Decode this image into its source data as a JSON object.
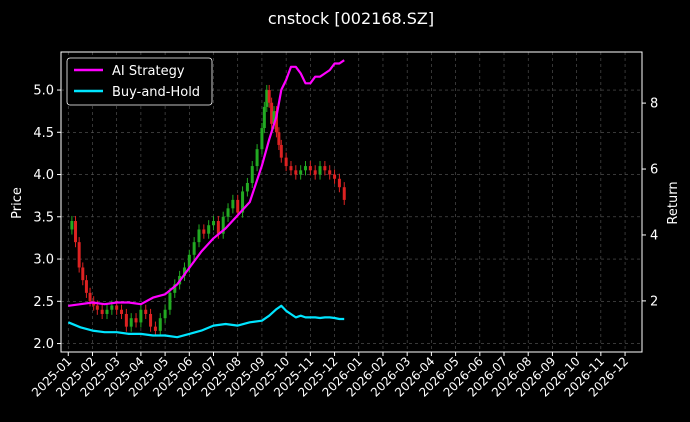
{
  "chart_data": {
    "type": "line",
    "title": "cnstock [002168.SZ]",
    "ylabel_left": "Price",
    "ylabel_right": "Return",
    "xlabel": "",
    "grid": true,
    "legend_position": "top-left",
    "x_ticks": [
      "2025-01",
      "2025-02",
      "2025-03",
      "2025-04",
      "2025-05",
      "2025-06",
      "2025-07",
      "2025-08",
      "2025-09",
      "2025-10",
      "2025-11",
      "2025-12",
      "2026-01",
      "2026-02",
      "2026-03",
      "2026-04",
      "2026-05",
      "2026-06",
      "2026-07",
      "2026-08",
      "2026-09",
      "2026-10",
      "2026-11",
      "2026-12"
    ],
    "y_left_ticks": [
      "2.0",
      "2.5",
      "3.0",
      "3.5",
      "4.0",
      "4.5",
      "5.0"
    ],
    "y_left_lim": [
      1.9,
      5.45
    ],
    "y_right_ticks": [
      "2",
      "4",
      "6",
      "8"
    ],
    "y_right_lim": [
      0.45,
      9.55
    ],
    "x_lim_month_index": [
      -0.3,
      23.7
    ],
    "price": {
      "up_color": "#22aa22",
      "down_color": "#dd2222",
      "x_month_index": [
        0.0,
        0.15,
        0.3,
        0.45,
        0.6,
        0.75,
        0.9,
        1.05,
        1.2,
        1.4,
        1.6,
        1.8,
        2.0,
        2.2,
        2.4,
        2.6,
        2.8,
        3.0,
        3.2,
        3.4,
        3.6,
        3.8,
        4.0,
        4.2,
        4.4,
        4.6,
        4.8,
        5.0,
        5.2,
        5.4,
        5.6,
        5.8,
        6.0,
        6.2,
        6.4,
        6.6,
        6.8,
        7.0,
        7.2,
        7.4,
        7.6,
        7.8,
        8.0,
        8.1,
        8.2,
        8.3,
        8.4,
        8.5,
        8.6,
        8.7,
        8.8,
        9.0,
        9.2,
        9.4,
        9.6,
        9.8,
        10.0,
        10.2,
        10.4,
        10.6,
        10.8,
        11.0,
        11.2,
        11.4
      ],
      "close": [
        3.35,
        3.45,
        3.2,
        2.9,
        2.75,
        2.6,
        2.5,
        2.45,
        2.4,
        2.35,
        2.4,
        2.45,
        2.4,
        2.35,
        2.2,
        2.3,
        2.25,
        2.4,
        2.35,
        2.2,
        2.15,
        2.3,
        2.4,
        2.6,
        2.7,
        2.8,
        2.9,
        3.05,
        3.2,
        3.35,
        3.3,
        3.4,
        3.45,
        3.3,
        3.5,
        3.6,
        3.7,
        3.55,
        3.8,
        3.9,
        4.1,
        4.3,
        4.55,
        4.8,
        5.0,
        4.85,
        4.6,
        4.75,
        4.5,
        4.35,
        4.2,
        4.1,
        4.05,
        4.0,
        4.05,
        4.1,
        4.05,
        4.0,
        4.1,
        4.05,
        4.0,
        3.95,
        3.85,
        3.7
      ]
    },
    "series": [
      {
        "name": "AI Strategy",
        "color": "#ff00ff",
        "x_month_index": [
          0.0,
          0.5,
          1.0,
          1.5,
          2.0,
          2.5,
          3.0,
          3.5,
          4.0,
          4.5,
          5.0,
          5.5,
          6.0,
          6.5,
          7.0,
          7.5,
          8.0,
          8.3,
          8.6,
          8.8,
          9.0,
          9.2,
          9.4,
          9.6,
          9.8,
          10.0,
          10.2,
          10.4,
          10.6,
          10.8,
          11.0,
          11.2,
          11.4
        ],
        "values": [
          1.85,
          1.9,
          1.95,
          1.9,
          1.95,
          1.95,
          1.9,
          2.1,
          2.2,
          2.5,
          3.0,
          3.5,
          3.9,
          4.2,
          4.6,
          5.0,
          6.1,
          6.9,
          7.6,
          8.4,
          8.7,
          9.1,
          9.1,
          8.9,
          8.6,
          8.6,
          8.8,
          8.8,
          8.9,
          9.0,
          9.2,
          9.2,
          9.3
        ]
      },
      {
        "name": "Buy-and-Hold",
        "color": "#00e5ff",
        "x_month_index": [
          0.0,
          0.5,
          1.0,
          1.5,
          2.0,
          2.5,
          3.0,
          3.5,
          4.0,
          4.5,
          5.0,
          5.5,
          6.0,
          6.5,
          7.0,
          7.5,
          8.0,
          8.3,
          8.6,
          8.8,
          9.0,
          9.2,
          9.4,
          9.6,
          9.8,
          10.0,
          10.2,
          10.4,
          10.6,
          10.8,
          11.0,
          11.2,
          11.4
        ],
        "values": [
          1.35,
          1.2,
          1.1,
          1.05,
          1.05,
          1.0,
          1.0,
          0.95,
          0.95,
          0.9,
          1.0,
          1.1,
          1.25,
          1.3,
          1.25,
          1.35,
          1.4,
          1.55,
          1.75,
          1.85,
          1.7,
          1.6,
          1.5,
          1.55,
          1.5,
          1.5,
          1.5,
          1.48,
          1.5,
          1.5,
          1.48,
          1.45,
          1.45
        ]
      }
    ]
  }
}
